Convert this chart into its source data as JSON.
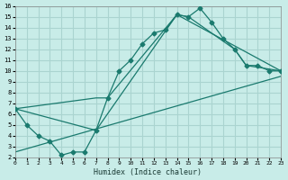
{
  "xlabel": "Humidex (Indice chaleur)",
  "ylabel": "",
  "background_color": "#c8ece8",
  "grid_color": "#aad4d0",
  "line_color": "#1a7a6e",
  "xlim": [
    0,
    23
  ],
  "ylim": [
    2,
    16
  ],
  "xticks": [
    0,
    1,
    2,
    3,
    4,
    5,
    6,
    7,
    8,
    9,
    10,
    11,
    12,
    13,
    14,
    15,
    16,
    17,
    18,
    19,
    20,
    21,
    22,
    23
  ],
  "yticks": [
    2,
    3,
    4,
    5,
    6,
    7,
    8,
    9,
    10,
    11,
    12,
    13,
    14,
    15,
    16
  ],
  "line1_x": [
    0,
    1,
    2,
    3,
    4,
    5,
    6,
    7,
    8,
    9,
    10,
    11,
    12,
    13,
    14,
    15,
    16,
    17,
    18,
    19,
    20,
    21,
    22,
    23
  ],
  "line1_y": [
    6.5,
    5.0,
    4.0,
    3.5,
    2.2,
    2.5,
    2.5,
    4.5,
    7.5,
    10.0,
    11.0,
    12.5,
    13.5,
    13.8,
    15.2,
    15.0,
    15.8,
    14.5,
    13.0,
    12.0,
    10.5,
    10.5,
    10.0,
    10.0
  ],
  "line2_x": [
    0,
    7,
    8,
    14,
    15,
    19,
    20,
    23
  ],
  "line2_y": [
    6.5,
    7.5,
    7.5,
    15.2,
    15.0,
    12.0,
    10.5,
    10.0
  ],
  "line3_x": [
    0,
    7,
    14,
    23
  ],
  "line3_y": [
    6.5,
    4.5,
    15.2,
    10.0
  ],
  "line4_x": [
    0,
    23
  ],
  "line4_y": [
    2.5,
    9.5
  ]
}
